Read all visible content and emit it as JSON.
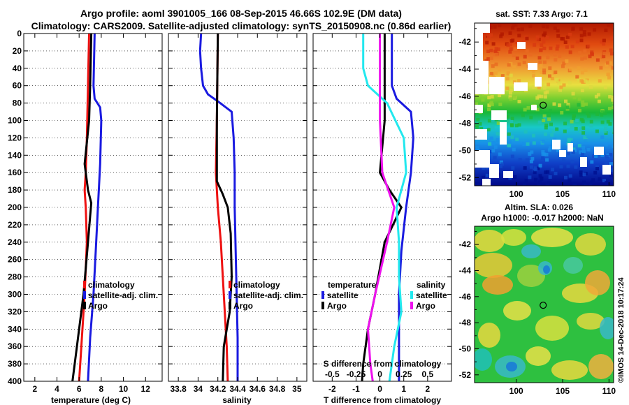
{
  "title_line1": "Argo profile: aoml 3901005_166 08-Sep-2015 46.66S 102.9E (DM data)",
  "title_line2": "Climatology: CARS2009. Satellite-adjusted climatology: synTS_20150908.nc (0.86d earlier)",
  "credit": "©IMOS 14-Dec-2018 10:17:24",
  "colors": {
    "red": "#ee1111",
    "blue": "#1a1ae0",
    "black": "#000000",
    "magenta": "#ee11ee",
    "cyan": "#22e8ee"
  },
  "chart_data": [
    {
      "type": "line",
      "name": "temperature-panel",
      "xlabel": "temperature (deg C)",
      "ylabel": "",
      "xlim": [
        1,
        13.5
      ],
      "ylim": [
        0,
        400
      ],
      "y_inverted": true,
      "xticks": [
        "2",
        "4",
        "6",
        "8",
        "10",
        "12"
      ],
      "xtick_values": [
        2,
        4,
        6,
        8,
        10,
        12
      ],
      "yticks": [
        "0",
        "20",
        "40",
        "60",
        "80",
        "100",
        "120",
        "140",
        "160",
        "180",
        "200",
        "220",
        "240",
        "260",
        "280",
        "300",
        "320",
        "340",
        "360",
        "380",
        "400"
      ],
      "legend": [
        "climatology",
        "satellite-adj. clim.",
        "Argo"
      ],
      "series": [
        {
          "name": "climatology",
          "color": "red",
          "depth": [
            0,
            60,
            120,
            160,
            180,
            200,
            240,
            300,
            360,
            400
          ],
          "values": [
            6.9,
            6.8,
            6.7,
            6.6,
            6.5,
            6.6,
            6.7,
            6.5,
            6.2,
            6.0
          ]
        },
        {
          "name": "satellite-adj. clim.",
          "color": "blue",
          "depth": [
            0,
            60,
            75,
            85,
            100,
            150,
            200,
            250,
            300,
            350,
            400
          ],
          "values": [
            7.4,
            7.3,
            7.4,
            7.9,
            8.0,
            7.9,
            7.7,
            7.5,
            7.3,
            7.0,
            6.8
          ]
        },
        {
          "name": "Argo",
          "color": "black",
          "depth": [
            0,
            60,
            100,
            150,
            180,
            195,
            210,
            240,
            300,
            340,
            380,
            400
          ],
          "values": [
            7.1,
            7.0,
            6.9,
            6.5,
            6.8,
            7.1,
            7.0,
            6.8,
            6.4,
            6.0,
            5.6,
            5.4
          ]
        }
      ]
    },
    {
      "type": "line",
      "name": "salinity-panel",
      "xlabel": "salinity",
      "xlim": [
        33.7,
        35.1
      ],
      "ylim": [
        0,
        400
      ],
      "y_inverted": true,
      "xticks": [
        "33.8",
        "34",
        "34.2",
        "34.4",
        "34.6",
        "34.8",
        "35"
      ],
      "xtick_values": [
        33.8,
        34.0,
        34.2,
        34.4,
        34.6,
        34.8,
        35.0
      ],
      "legend": [
        "climatology",
        "satellite-adj. clim.",
        "Argo"
      ],
      "series": [
        {
          "name": "climatology",
          "color": "red",
          "depth": [
            0,
            100,
            160,
            200,
            240,
            280,
            320,
            360,
            400
          ],
          "values": [
            34.2,
            34.19,
            34.18,
            34.2,
            34.23,
            34.25,
            34.27,
            34.29,
            34.3
          ]
        },
        {
          "name": "satellite-adj. clim.",
          "color": "blue",
          "depth": [
            0,
            20,
            40,
            60,
            70,
            78,
            90,
            120,
            160,
            200,
            250,
            300,
            350,
            400
          ],
          "values": [
            34.03,
            34.02,
            34.03,
            34.05,
            34.1,
            34.2,
            34.34,
            34.36,
            34.37,
            34.37,
            34.38,
            34.39,
            34.4,
            34.4
          ]
        },
        {
          "name": "Argo",
          "color": "black",
          "depth": [
            0,
            100,
            170,
            185,
            200,
            230,
            280,
            320,
            360,
            400
          ],
          "values": [
            34.2,
            34.19,
            34.19,
            34.25,
            34.3,
            34.33,
            34.34,
            34.32,
            34.26,
            34.25
          ]
        }
      ]
    },
    {
      "type": "line",
      "name": "difference-panel",
      "xlabel": "T difference from climatology",
      "xlabel2": "S difference from climatology",
      "xlim": [
        -2.8,
        3.0
      ],
      "ylim": [
        0,
        400
      ],
      "y_inverted": true,
      "xticks": [
        "-2",
        "-1",
        "0",
        "1",
        "2"
      ],
      "xtick_values": [
        -2,
        -1,
        0,
        1,
        2
      ],
      "xticks2": [
        "-0.5",
        "-0.25",
        "0",
        "0.25",
        "0.5"
      ],
      "xtick2_positions": [
        -2,
        -1,
        0,
        1,
        2
      ],
      "legend_left_title": "temperature",
      "legend_left": [
        "satellite",
        "Argo"
      ],
      "legend_right_title": "salinity",
      "legend_right": [
        "satellite",
        "Argo"
      ],
      "series": [
        {
          "name": "T satellite",
          "color": "blue",
          "depth": [
            0,
            60,
            75,
            90,
            120,
            160,
            200,
            250,
            300,
            350,
            400
          ],
          "values": [
            0.5,
            0.5,
            0.7,
            1.3,
            1.4,
            1.3,
            1.1,
            0.9,
            0.8,
            0.8,
            0.8
          ]
        },
        {
          "name": "T Argo",
          "color": "black",
          "depth": [
            0,
            100,
            160,
            180,
            200,
            240,
            300,
            340,
            380,
            400
          ],
          "values": [
            0.2,
            0.2,
            0.0,
            0.4,
            0.9,
            0.2,
            -0.2,
            -0.5,
            -0.7,
            -0.75
          ]
        },
        {
          "name": "S satellite",
          "color": "cyan",
          "depth": [
            0,
            40,
            60,
            80,
            120,
            160,
            200,
            240,
            280,
            320,
            360,
            400
          ],
          "values": [
            -0.7,
            -0.7,
            -0.5,
            0.3,
            1.0,
            1.1,
            0.7,
            0.8,
            0.8,
            0.9,
            0.6,
            0.4
          ]
        },
        {
          "name": "S Argo",
          "color": "magenta",
          "depth": [
            0,
            100,
            160,
            200,
            240,
            300,
            340,
            380,
            400
          ],
          "values": [
            0.0,
            0.0,
            0.1,
            0.6,
            0.3,
            -0.2,
            -0.5,
            -0.4,
            -0.3
          ]
        }
      ]
    },
    {
      "type": "heatmap",
      "name": "sst-map",
      "title": "sat. SST: 7.33 Argo: 7.1",
      "xticks": [
        "100",
        "105",
        "110"
      ],
      "yticks": [
        "-42",
        "-44",
        "-46",
        "-48",
        "-50",
        "-52"
      ],
      "xlim": [
        95.5,
        110.5
      ],
      "ylim": [
        -52.6,
        -40.6
      ],
      "marker": {
        "lon": 102.9,
        "lat": -46.66
      }
    },
    {
      "type": "heatmap",
      "name": "sla-map",
      "title_line1": "Altim. SLA: 0.026",
      "title_line2": "Argo h1000: -0.017 h2000: NaN",
      "xticks": [
        "100",
        "105",
        "110"
      ],
      "yticks": [
        "-42",
        "-44",
        "-46",
        "-48",
        "-50",
        "-52"
      ],
      "xlim": [
        95.5,
        110.5
      ],
      "ylim": [
        -52.6,
        -40.6
      ],
      "marker": {
        "lon": 102.9,
        "lat": -46.66
      }
    }
  ]
}
